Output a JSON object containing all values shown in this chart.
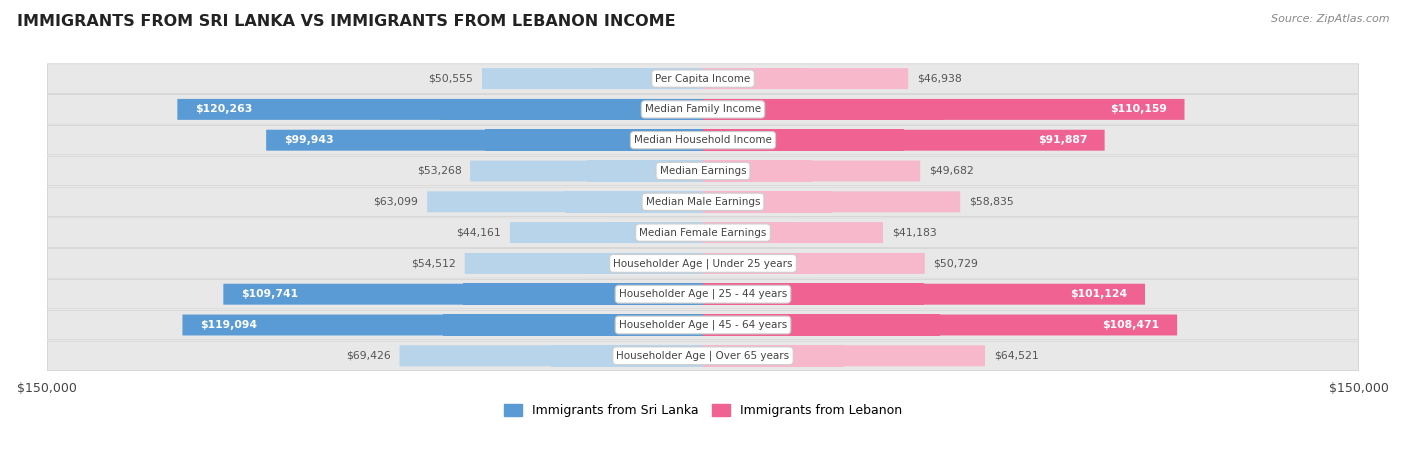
{
  "title": "IMMIGRANTS FROM SRI LANKA VS IMMIGRANTS FROM LEBANON INCOME",
  "source": "Source: ZipAtlas.com",
  "categories": [
    "Per Capita Income",
    "Median Family Income",
    "Median Household Income",
    "Median Earnings",
    "Median Male Earnings",
    "Median Female Earnings",
    "Householder Age | Under 25 years",
    "Householder Age | 25 - 44 years",
    "Householder Age | 45 - 64 years",
    "Householder Age | Over 65 years"
  ],
  "sri_lanka_values": [
    50555,
    120263,
    99943,
    53268,
    63099,
    44161,
    54512,
    109741,
    119094,
    69426
  ],
  "lebanon_values": [
    46938,
    110159,
    91887,
    49682,
    58835,
    41183,
    50729,
    101124,
    108471,
    64521
  ],
  "sri_lanka_color_light": "#b8d4ea",
  "sri_lanka_color_dark": "#5b9bd5",
  "lebanon_color_light": "#f7b8cc",
  "lebanon_color_dark": "#f06292",
  "dark_label_color": "#555555",
  "background_color": "#ffffff",
  "row_bg_color": "#e8e8e8",
  "max_value": 150000,
  "legend_sri_lanka": "Immigrants from Sri Lanka",
  "legend_lebanon": "Immigrants from Lebanon",
  "label_threshold": 80000
}
